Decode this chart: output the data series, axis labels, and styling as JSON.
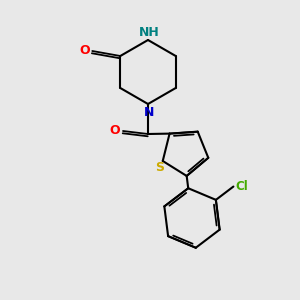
{
  "bg_color": "#e8e8e8",
  "atom_colors": {
    "O": "#ff0000",
    "N": "#0000cc",
    "NH": "#008080",
    "S": "#ccaa00",
    "Cl": "#44aa00",
    "C": "#000000"
  },
  "bond_color": "#000000",
  "lw_single": 1.5,
  "lw_double": 1.3,
  "font_size": 9,
  "font_size_cl": 8.5
}
